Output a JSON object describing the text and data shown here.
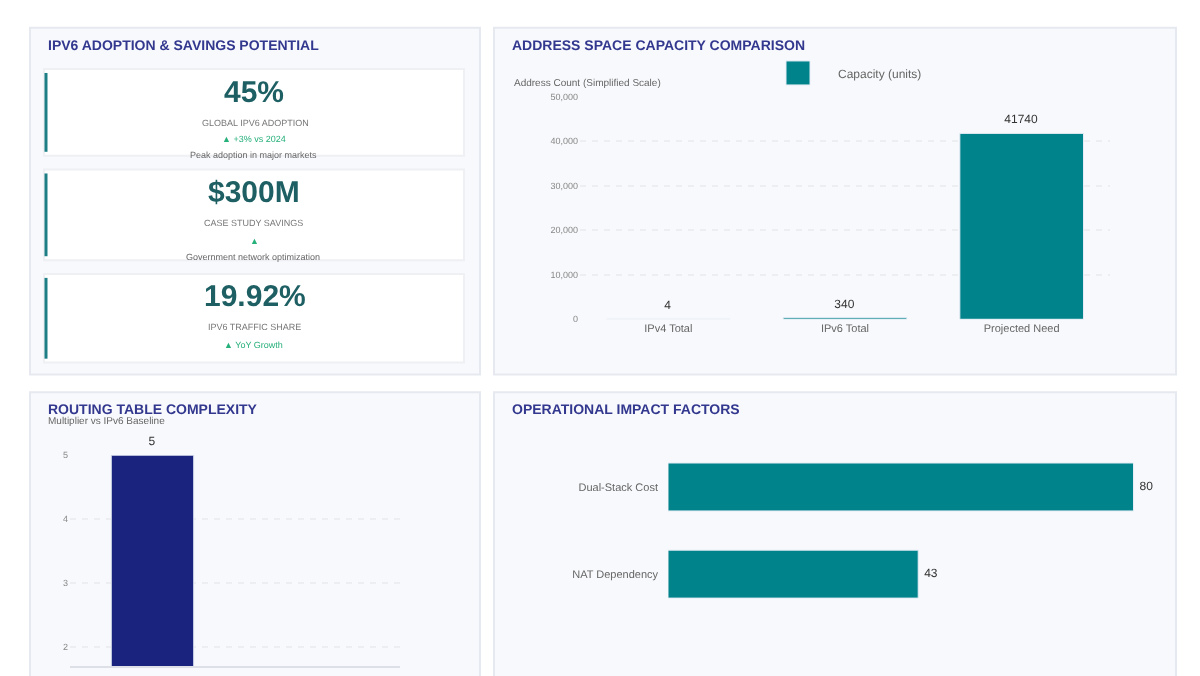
{
  "chart_data": [
    {
      "type": "other",
      "title": "IPV6 ADOPTION & SAVINGS POTENTIAL",
      "annotations": [
        "45%",
        "GLOBAL IPV6 ADOPTION",
        "▲ +3% vs 2024",
        "Peak adoption in major markets",
        "$300M",
        "CASE STUDY SAVINGS",
        "▲",
        "Government network optimization",
        "19.92%",
        "IPV6 TRAFFIC SHARE",
        "▲ YoY Growth"
      ]
    },
    {
      "type": "bar",
      "title": "ADDRESS SPACE CAPACITY COMPARISON",
      "ylabel": "Address Count (Simplified Scale)",
      "categories": [
        "IPv4 Total",
        "IPv6 Total",
        "Projected Need"
      ],
      "series": [
        {
          "name": "Capacity (units)",
          "color": "#00838a",
          "values": [
            4,
            340,
            41740
          ]
        }
      ],
      "ylim": [
        0,
        50000
      ],
      "yticks": [
        0,
        {
          "value": 10000,
          "label": "10,000"
        },
        {
          "value": 20000,
          "label": "20,000"
        },
        {
          "value": 30000,
          "label": "30,000"
        },
        {
          "value": 40000,
          "label": "40,000"
        },
        {
          "value": 50000,
          "label": "50,000"
        }
      ],
      "grid": "y",
      "legend": "top",
      "data_labels": true
    },
    {
      "type": "bar",
      "title": "ROUTING TABLE COMPLEXITY",
      "ylabel": "Multiplier vs IPv6 Baseline",
      "categories": [
        null,
        null
      ],
      "series": [
        {
          "color": "#1a237e",
          "values": [
            5,
            null
          ]
        }
      ],
      "ylim": [
        1.7,
        5
      ],
      "yticks": [
        2,
        3,
        4,
        5
      ],
      "grid": "y",
      "data_labels": true,
      "tick_labels": "y"
    },
    {
      "type": "bar",
      "orientation": "horizontal",
      "title": "OPERATIONAL IMPACT FACTORS",
      "categories": [
        "Dual-Stack Cost",
        "NAT Dependency"
      ],
      "series": [
        {
          "color": "#00838a",
          "values": [
            80,
            43
          ]
        }
      ],
      "data_labels": true,
      "tick_labels": "y"
    }
  ]
}
